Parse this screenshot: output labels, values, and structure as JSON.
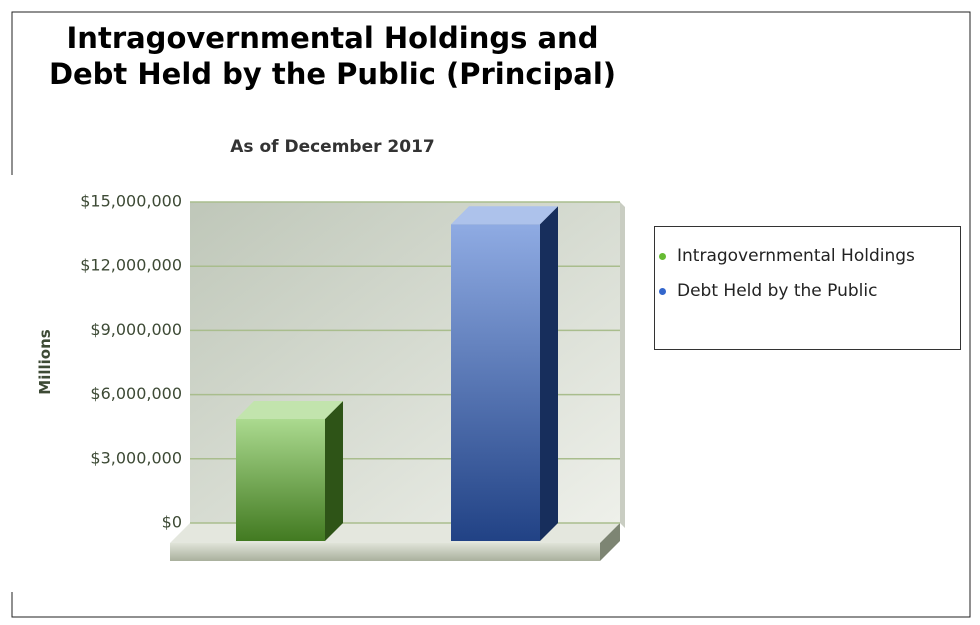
{
  "chart_data": {
    "type": "bar3d",
    "title": "Intragovernmental Holdings and Debt Held by the Public (Principal)",
    "subtitle": "As of December 2017",
    "y_label": "Millions",
    "categories": [
      "Intragovernmental Holdings",
      "Debt Held by the Public"
    ],
    "values": [
      5700000,
      14800000
    ],
    "colors": [
      "#66bb33",
      "#3366cc"
    ],
    "ylim": [
      0,
      15000000
    ],
    "yticks": [
      {
        "value": 0,
        "label": "$0"
      },
      {
        "value": 3000000,
        "label": "$3,000,000"
      },
      {
        "value": 6000000,
        "label": "$6,000,000"
      },
      {
        "value": 9000000,
        "label": "$9,000,000"
      },
      {
        "value": 12000000,
        "label": "$12,000,000"
      },
      {
        "value": 15000000,
        "label": "$15,000,000"
      }
    ],
    "grid": true
  }
}
